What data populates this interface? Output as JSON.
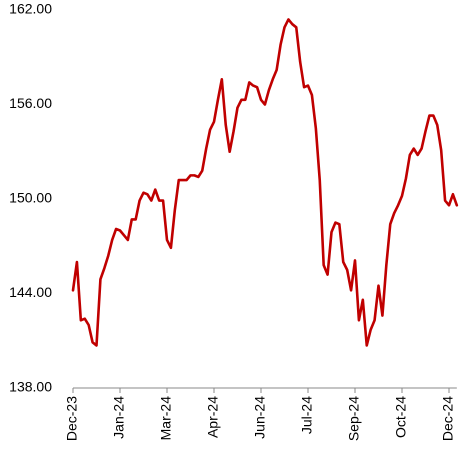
{
  "chart_data": {
    "type": "line",
    "categories": [
      "Dec-23",
      null,
      null,
      null,
      null,
      null,
      null,
      null,
      null,
      null,
      null,
      null,
      "Jan-24",
      null,
      null,
      null,
      null,
      null,
      null,
      null,
      null,
      null,
      null,
      null,
      "Mar-24",
      null,
      null,
      null,
      null,
      null,
      null,
      null,
      null,
      null,
      null,
      null,
      "Apr-24",
      null,
      null,
      null,
      null,
      null,
      null,
      null,
      null,
      null,
      null,
      null,
      "Jun-24",
      null,
      null,
      null,
      null,
      null,
      null,
      null,
      null,
      null,
      null,
      null,
      "Jul-24",
      null,
      null,
      null,
      null,
      null,
      null,
      null,
      null,
      null,
      null,
      null,
      "Sep-24",
      null,
      null,
      null,
      null,
      null,
      null,
      null,
      null,
      null,
      null,
      null,
      "Oct-24",
      null,
      null,
      null,
      null,
      null,
      null,
      null,
      null,
      null,
      null,
      null,
      "Dec-24",
      null,
      null
    ],
    "series": [
      {
        "color": "#c00000",
        "values": [
          144.2,
          146.0,
          142.3,
          142.4,
          142.0,
          140.9,
          140.7,
          144.9,
          145.6,
          146.4,
          147.4,
          148.1,
          148.0,
          147.7,
          147.4,
          148.7,
          148.7,
          149.9,
          150.4,
          150.3,
          149.9,
          150.6,
          149.9,
          149.9,
          147.4,
          146.9,
          149.3,
          151.2,
          151.2,
          151.2,
          151.5,
          151.5,
          151.4,
          151.8,
          153.2,
          154.4,
          154.9,
          156.3,
          157.6,
          154.7,
          153.0,
          154.3,
          155.8,
          156.3,
          156.3,
          157.4,
          157.2,
          157.1,
          156.3,
          156.0,
          156.9,
          157.6,
          158.2,
          159.8,
          160.9,
          161.4,
          161.1,
          160.9,
          158.7,
          157.1,
          157.2,
          156.6,
          154.5,
          151.2,
          145.8,
          145.2,
          147.9,
          148.5,
          148.4,
          146.0,
          145.5,
          144.2,
          146.1,
          142.3,
          143.6,
          140.7,
          141.7,
          142.3,
          144.5,
          142.6,
          145.8,
          148.4,
          149.1,
          149.6,
          150.2,
          151.3,
          152.8,
          153.2,
          152.8,
          153.2,
          154.3,
          155.3,
          155.3,
          154.7,
          153.1,
          149.9,
          149.6,
          150.3,
          149.6
        ]
      }
    ],
    "ylim": [
      138,
      162
    ],
    "yticks": [
      {
        "value": 138,
        "label": "138.00"
      },
      {
        "value": 144,
        "label": "144.00"
      },
      {
        "value": 150,
        "label": "150.00"
      },
      {
        "value": 156,
        "label": "156.00"
      },
      {
        "value": 162,
        "label": "162.00"
      }
    ]
  }
}
